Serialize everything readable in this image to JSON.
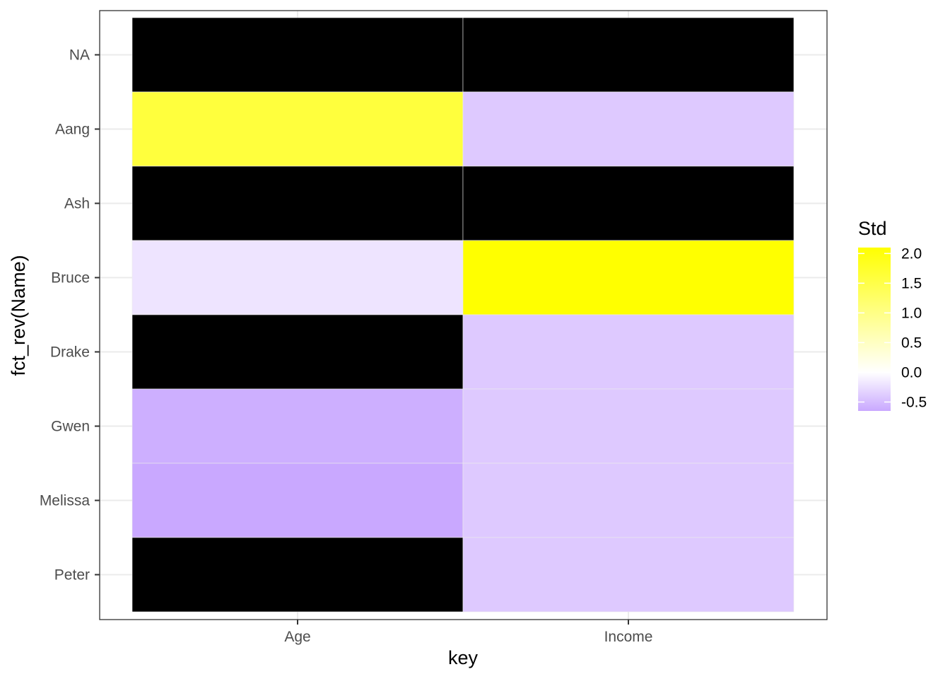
{
  "chart_data": {
    "type": "heatmap",
    "xlabel": "key",
    "ylabel": "fct_rev(Name)",
    "x_categories": [
      "Age",
      "Income"
    ],
    "y_categories": [
      "NA",
      "Aang",
      "Ash",
      "Bruce",
      "Drake",
      "Gwen",
      "Melissa",
      "Peter"
    ],
    "cells": [
      {
        "x": "Age",
        "y": "NA",
        "value": null
      },
      {
        "x": "Income",
        "y": "NA",
        "value": null
      },
      {
        "x": "Age",
        "y": "Aang",
        "value": 1.6
      },
      {
        "x": "Income",
        "y": "Aang",
        "value": -0.4
      },
      {
        "x": "Age",
        "y": "Ash",
        "value": null
      },
      {
        "x": "Income",
        "y": "Ash",
        "value": null
      },
      {
        "x": "Age",
        "y": "Bruce",
        "value": -0.2
      },
      {
        "x": "Income",
        "y": "Bruce",
        "value": 2.1
      },
      {
        "x": "Age",
        "y": "Drake",
        "value": null
      },
      {
        "x": "Income",
        "y": "Drake",
        "value": -0.4
      },
      {
        "x": "Age",
        "y": "Gwen",
        "value": -0.6
      },
      {
        "x": "Income",
        "y": "Gwen",
        "value": -0.4
      },
      {
        "x": "Age",
        "y": "Melissa",
        "value": -0.65
      },
      {
        "x": "Income",
        "y": "Melissa",
        "value": -0.4
      },
      {
        "x": "Age",
        "y": "Peter",
        "value": null
      },
      {
        "x": "Income",
        "y": "Peter",
        "value": -0.4
      }
    ],
    "na_color": "#000000",
    "legend": {
      "title": "Std",
      "position": "right",
      "low_color": "#c9a8ff",
      "mid_color": "#ffffff",
      "high_color": "#ffff00",
      "range": [
        -0.65,
        2.1
      ],
      "ticks": [
        2.0,
        1.5,
        1.0,
        0.5,
        0.0,
        -0.5
      ],
      "tick_labels": [
        "2.0",
        "1.5",
        "1.0",
        "0.5",
        "0.0",
        "-0.5"
      ]
    },
    "grid": true
  }
}
